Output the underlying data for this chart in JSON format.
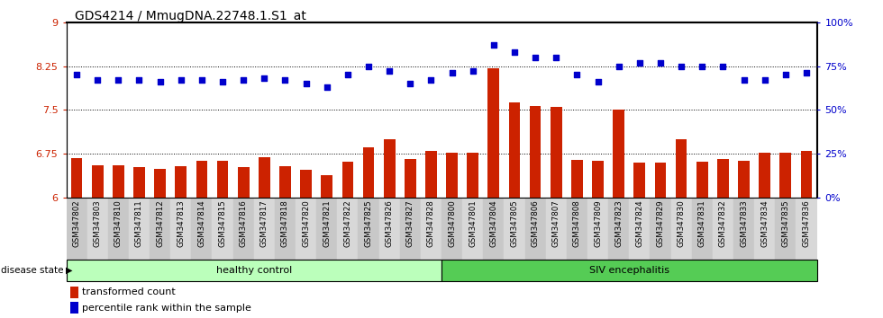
{
  "title": "GDS4214 / MmugDNA.22748.1.S1_at",
  "samples": [
    "GSM347802",
    "GSM347803",
    "GSM347810",
    "GSM347811",
    "GSM347812",
    "GSM347813",
    "GSM347814",
    "GSM347815",
    "GSM347816",
    "GSM347817",
    "GSM347818",
    "GSM347820",
    "GSM347821",
    "GSM347822",
    "GSM347825",
    "GSM347826",
    "GSM347827",
    "GSM347828",
    "GSM347800",
    "GSM347801",
    "GSM347804",
    "GSM347805",
    "GSM347806",
    "GSM347807",
    "GSM347808",
    "GSM347809",
    "GSM347823",
    "GSM347824",
    "GSM347829",
    "GSM347830",
    "GSM347831",
    "GSM347832",
    "GSM347833",
    "GSM347834",
    "GSM347835",
    "GSM347836"
  ],
  "bar_values": [
    6.68,
    6.55,
    6.56,
    6.53,
    6.5,
    6.54,
    6.64,
    6.63,
    6.52,
    6.7,
    6.54,
    6.48,
    6.38,
    6.62,
    6.86,
    7.0,
    6.67,
    6.8,
    6.77,
    6.77,
    8.22,
    7.63,
    7.57,
    7.55,
    6.65,
    6.64,
    7.5,
    6.6,
    6.6,
    7.0,
    6.62,
    6.67,
    6.64,
    6.77,
    6.77,
    6.8
  ],
  "percentile_values": [
    70,
    67,
    67,
    67,
    66,
    67,
    67,
    66,
    67,
    68,
    67,
    65,
    63,
    70,
    75,
    72,
    65,
    67,
    71,
    72,
    87,
    83,
    80,
    80,
    70,
    66,
    75,
    77,
    77,
    75,
    75,
    75,
    67,
    67,
    70,
    71
  ],
  "healthy_count": 18,
  "bar_color": "#cc2200",
  "dot_color": "#0000cc",
  "ylim_left": [
    6.0,
    9.0
  ],
  "ylim_right": [
    0,
    100
  ],
  "yticks_left": [
    6.0,
    6.75,
    7.5,
    8.25,
    9.0
  ],
  "ytick_labels_left": [
    "6",
    "6.75",
    "7.5",
    "8.25",
    "9"
  ],
  "yticks_right": [
    0,
    25,
    50,
    75,
    100
  ],
  "ytick_labels_right": [
    "0%",
    "25%",
    "50%",
    "75%",
    "100%"
  ],
  "healthy_label": "healthy control",
  "siv_label": "SIV encephalitis",
  "disease_label": "disease state",
  "legend_bar": "transformed count",
  "legend_dot": "percentile rank within the sample",
  "healthy_bg": "#bbffbb",
  "siv_bg": "#55cc55",
  "xtick_bg_even": "#c8c8c8",
  "xtick_bg_odd": "#d8d8d8"
}
